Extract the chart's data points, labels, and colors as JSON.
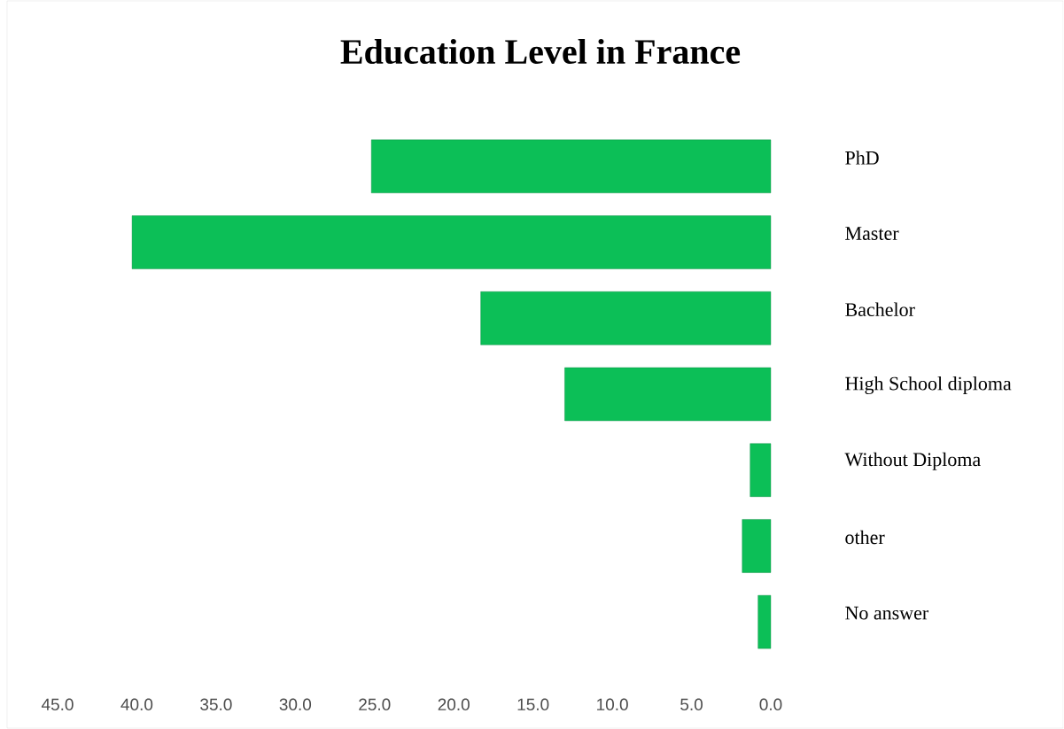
{
  "chart_data": {
    "type": "bar",
    "orientation": "horizontal",
    "title": "Education Level in France",
    "categories": [
      "PhD",
      "Master",
      "Bachelor",
      "High School diploma",
      "Without Diploma",
      "other",
      "No answer"
    ],
    "values": [
      25.2,
      40.3,
      18.3,
      13.0,
      1.3,
      1.8,
      0.8
    ],
    "color": "#0cbf57",
    "xlim": [
      45,
      0
    ],
    "xticks": [
      {
        "value": 45,
        "label": "45.0"
      },
      {
        "value": 40,
        "label": "40.0"
      },
      {
        "value": 35,
        "label": "35.0"
      },
      {
        "value": 30,
        "label": "30.0"
      },
      {
        "value": 25,
        "label": "25.0"
      },
      {
        "value": 20,
        "label": "20.0"
      },
      {
        "value": 15,
        "label": "15.0"
      },
      {
        "value": 10,
        "label": "10.0"
      },
      {
        "value": 5,
        "label": "5.0"
      },
      {
        "value": 0,
        "label": "0.0"
      }
    ]
  }
}
